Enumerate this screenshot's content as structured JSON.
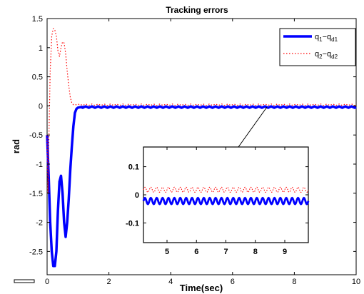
{
  "chart_data": {
    "type": "line",
    "title": "Tracking errors",
    "xlabel": "Time(sec)",
    "ylabel": "rad",
    "xlim": [
      0,
      10
    ],
    "ylim": [
      -2.9,
      1.5
    ],
    "xticks": [
      "0",
      "2",
      "4",
      "6",
      "8",
      "10"
    ],
    "yticks": [
      "1.5",
      "1",
      "0.5",
      "0",
      "-0.5",
      "-1",
      "-1.5",
      "-2",
      "-2.5"
    ],
    "grid": false,
    "legend_position": "top-right",
    "series": [
      {
        "name": "q1-qd1",
        "legend_main": "q",
        "legend_sub1": "1",
        "legend_mid": "−q",
        "legend_sub2": "d1",
        "color": "#0000ff",
        "style": "solid",
        "x": [
          0,
          0.05,
          0.1,
          0.15,
          0.2,
          0.25,
          0.3,
          0.35,
          0.4,
          0.45,
          0.5,
          0.55,
          0.6,
          0.65,
          0.7,
          0.75,
          0.8,
          0.85,
          0.9,
          0.95,
          1.0,
          1.1,
          1.2,
          10
        ],
        "y": [
          -0.5,
          -1.2,
          -2.0,
          -2.5,
          -2.75,
          -2.75,
          -2.5,
          -1.8,
          -1.3,
          -1.2,
          -1.5,
          -2.0,
          -2.25,
          -2.0,
          -1.6,
          -1.1,
          -0.7,
          -0.35,
          -0.12,
          -0.05,
          -0.03,
          -0.02,
          -0.02,
          -0.02
        ],
        "ripple_after": 1.1,
        "ripple_amplitude": 0.012
      },
      {
        "name": "q2-qd2",
        "legend_main": "q",
        "legend_sub1": "2",
        "legend_mid": "−q",
        "legend_sub2": "d2",
        "color": "#ff0000",
        "style": "dotted",
        "x": [
          0,
          0.03,
          0.06,
          0.1,
          0.15,
          0.2,
          0.25,
          0.3,
          0.35,
          0.4,
          0.45,
          0.5,
          0.55,
          0.6,
          0.65,
          0.7,
          0.75,
          0.8,
          0.85,
          0.9,
          0.95,
          1.0,
          10
        ],
        "y": [
          -0.5,
          -1.5,
          -0.5,
          0.6,
          1.2,
          1.33,
          1.3,
          1.2,
          0.95,
          0.85,
          1.0,
          1.1,
          1.08,
          0.9,
          0.6,
          0.35,
          0.15,
          0.05,
          0.02,
          0.02,
          0.02,
          0.02,
          0.02
        ],
        "ripple_after": 1.0,
        "ripple_amplitude": 0.012
      }
    ],
    "inset": {
      "xlim": [
        4.2,
        9.8
      ],
      "ylim": [
        -0.17,
        0.17
      ],
      "xticks": [
        "5",
        "6",
        "7",
        "8",
        "9"
      ],
      "yticks": [
        "0.1",
        "0",
        "-0.1"
      ],
      "series": [
        {
          "color": "#0000ff",
          "style": "solid",
          "base": -0.022,
          "amplitude": 0.011,
          "period": 0.2
        },
        {
          "color": "#ff0000",
          "style": "dotted",
          "base": 0.018,
          "amplitude": 0.009,
          "period": 0.2
        }
      ]
    }
  }
}
